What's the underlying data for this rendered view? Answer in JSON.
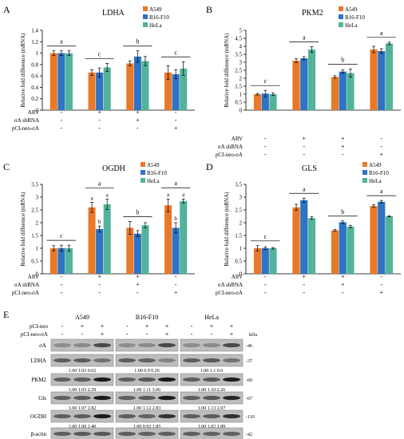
{
  "colors": {
    "A549": "#E8782A",
    "B16-F10": "#2E73C4",
    "HeLa": "#52B39A"
  },
  "row_labels": [
    "ARV",
    "σA shRNA",
    "pCI-neo-σA"
  ],
  "conditions": [
    [
      "-",
      "+",
      "+",
      "-"
    ],
    [
      "-",
      "-",
      "+",
      "-"
    ],
    [
      "-",
      "-",
      "-",
      "+"
    ]
  ],
  "chart_data": [
    {
      "panel": "A",
      "type": "bar",
      "title": "LDHA",
      "ylabel": "Relative fold difference (mRNA)",
      "ylim": [
        0,
        1.4
      ],
      "yticks": [
        "0",
        "0.2",
        "0.4",
        "0.6",
        "0.8",
        "1",
        "1.2",
        "1.4"
      ],
      "legend": "top-right",
      "series": [
        {
          "name": "A549",
          "values": [
            1.0,
            0.66,
            0.82,
            0.66
          ],
          "err": [
            0.04,
            0.05,
            0.04,
            0.12
          ]
        },
        {
          "name": "B16-F10",
          "values": [
            1.0,
            0.66,
            0.94,
            0.63
          ],
          "err": [
            0.04,
            0.08,
            0.1,
            0.08
          ]
        },
        {
          "name": "HeLa",
          "values": [
            1.0,
            0.75,
            0.86,
            0.73
          ],
          "err": [
            0.04,
            0.07,
            0.08,
            0.12
          ]
        }
      ],
      "sig_letters": [
        "a",
        "c",
        "b",
        "c"
      ]
    },
    {
      "panel": "B",
      "type": "bar",
      "title": "PKM2",
      "ylabel": "Relative fold difference (mRNA)",
      "ylim": [
        0,
        5
      ],
      "yticks": [
        "0",
        "0.5",
        "1",
        "1.5",
        "2",
        "2.5",
        "3",
        "3.5",
        "4",
        "4.5",
        "5"
      ],
      "legend": "top-right",
      "series": [
        {
          "name": "A549",
          "values": [
            1.0,
            3.1,
            2.08,
            3.8
          ],
          "err": [
            0.05,
            0.12,
            0.08,
            0.2
          ]
        },
        {
          "name": "B16-F10",
          "values": [
            1.04,
            3.25,
            2.42,
            3.7
          ],
          "err": [
            0.2,
            0.1,
            0.1,
            0.15
          ]
        },
        {
          "name": "HeLa",
          "values": [
            1.0,
            3.8,
            2.32,
            4.18
          ],
          "err": [
            0.08,
            0.18,
            0.25,
            0.08
          ]
        }
      ],
      "sig_letters": [
        "c",
        "a",
        "b",
        "a"
      ]
    },
    {
      "panel": "C",
      "type": "bar",
      "title": "OGDH",
      "ylabel": "Relative fold difference (mRNA)",
      "ylim": [
        0,
        3.5
      ],
      "yticks": [
        "0",
        "0.5",
        "1",
        "1.5",
        "2",
        "2.5",
        "3",
        "3.5"
      ],
      "legend": "top-right",
      "series": [
        {
          "name": "A549",
          "values": [
            1.0,
            2.6,
            1.8,
            2.68
          ],
          "err": [
            0.1,
            0.2,
            0.25,
            0.25
          ]
        },
        {
          "name": "B16-F10",
          "values": [
            1.0,
            1.75,
            1.57,
            1.8
          ],
          "err": [
            0.12,
            0.12,
            0.12,
            0.2
          ]
        },
        {
          "name": "HeLa",
          "values": [
            1.0,
            2.72,
            1.9,
            2.85
          ],
          "err": [
            0.12,
            0.2,
            0.1,
            0.08
          ]
        }
      ],
      "sig_letters": [
        "c",
        "a",
        "b",
        "a"
      ],
      "bar_letters": [
        [
          "",
          "",
          ""
        ],
        [
          "a",
          "b",
          "a"
        ],
        [
          "",
          "",
          ""
        ],
        [
          "a",
          "b",
          "a"
        ]
      ]
    },
    {
      "panel": "D",
      "type": "bar",
      "title": "GLS",
      "ylabel": "Relative fold difference (mRNA)",
      "ylim": [
        0,
        3.5
      ],
      "yticks": [
        "0",
        "0.5",
        "1",
        "1.5",
        "2",
        "2.5",
        "3",
        "3.5"
      ],
      "legend": "top-right",
      "series": [
        {
          "name": "A549",
          "values": [
            1.0,
            2.6,
            1.7,
            2.65
          ],
          "err": [
            0.1,
            0.12,
            0.03,
            0.05
          ]
        },
        {
          "name": "B16-F10",
          "values": [
            1.0,
            2.88,
            2.02,
            2.82
          ],
          "err": [
            0.05,
            0.08,
            0.05,
            0.05
          ]
        },
        {
          "name": "HeLa",
          "values": [
            1.0,
            2.18,
            1.85,
            2.25
          ],
          "err": [
            0.03,
            0.05,
            0.05,
            0.02
          ]
        }
      ],
      "sig_letters": [
        "c",
        "a",
        "b",
        "a"
      ]
    }
  ],
  "blot": {
    "panel": "E",
    "kda_label": "kDa",
    "top_labels": [
      "pCI-neo",
      "pCI-neo-σA"
    ],
    "groups": [
      {
        "name": "A549",
        "pci_neo": [
          "-",
          "+",
          "+"
        ],
        "pci_neo_sa": [
          "-",
          "-",
          "+"
        ]
      },
      {
        "name": "B16-F10",
        "pci_neo": [
          "-",
          "+",
          "+"
        ],
        "pci_neo_sa": [
          "-",
          "-",
          "+"
        ]
      },
      {
        "name": "HeLa",
        "pci_neo": [
          "-",
          "+",
          "+"
        ],
        "pci_neo_sa": [
          "-",
          "-",
          "+"
        ]
      }
    ],
    "rows": [
      {
        "label": "σA",
        "kda": "-46",
        "values": []
      },
      {
        "label": "LDHA",
        "kda": "-37",
        "values": [
          "1.00 1.03 0.62",
          "1.00 0.9 0.26",
          "1.00 1.1 0.6"
        ]
      },
      {
        "label": "PKM2",
        "kda": "-60",
        "values": [
          "1.00 1.03 2.59",
          "1.00 1.11 3.06",
          "1.00 1.10 2.26"
        ]
      },
      {
        "label": "Gls",
        "kda": "-67",
        "values": [
          "1.00 1.07 2.82",
          "1.00 1.12 2.83",
          "1.00 1.13 2.07"
        ]
      },
      {
        "label": "OGDH",
        "kda": "-110",
        "values": [
          "1.00 1.00 2.40",
          "1.00 0.92 1.85",
          "1.00 1.02 1.89"
        ]
      },
      {
        "label": "β-actin",
        "kda": "-42",
        "values": [
          "1.00 1.08 1.11",
          "1.00 0.93 0.97",
          "1.00 0.92 0.95"
        ]
      }
    ]
  }
}
